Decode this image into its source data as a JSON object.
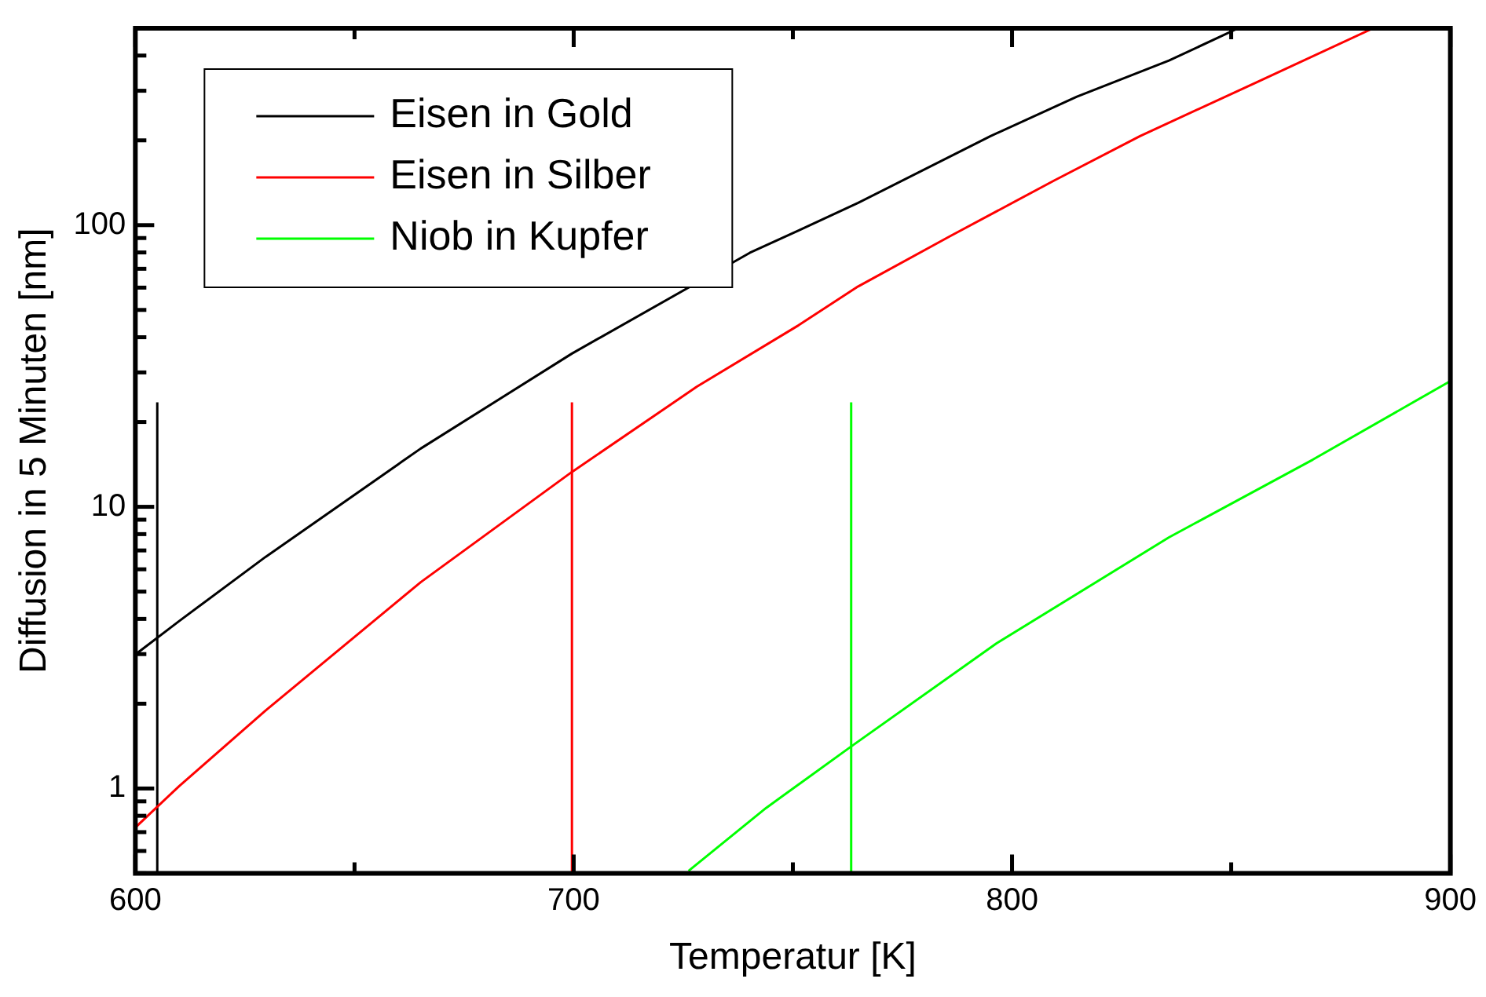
{
  "chart_data": {
    "type": "line",
    "xlabel": "Temperatur [K]",
    "ylabel": "Diffusion in 5 Minuten [nm]",
    "log": "y",
    "grid": false,
    "legend": "top left",
    "line_style": "solid",
    "marker": "none",
    "xlim": [
      600,
      900
    ],
    "xticks": [
      600,
      {
        "value": 650,
        "label": null
      },
      700,
      {
        "value": 750,
        "label": null
      },
      800,
      {
        "value": 850,
        "label": null
      },
      900
    ],
    "ylim": [
      0.5,
      500
    ],
    "yticks": [
      {
        "value": 0.5,
        "label": null
      },
      {
        "value": 0.6,
        "label": null
      },
      {
        "value": 0.7,
        "label": null
      },
      {
        "value": 0.8,
        "label": null
      },
      {
        "value": 0.9,
        "label": null
      },
      1,
      {
        "value": 2,
        "label": null
      },
      {
        "value": 3,
        "label": null
      },
      {
        "value": 4,
        "label": null
      },
      {
        "value": 5,
        "label": null
      },
      {
        "value": 6,
        "label": null
      },
      {
        "value": 7,
        "label": null
      },
      {
        "value": 8,
        "label": null
      },
      {
        "value": 9,
        "label": null
      },
      10,
      {
        "value": 20,
        "label": null
      },
      {
        "value": 30,
        "label": null
      },
      {
        "value": 40,
        "label": null
      },
      {
        "value": 50,
        "label": null
      },
      {
        "value": 60,
        "label": null
      },
      {
        "value": 70,
        "label": null
      },
      {
        "value": 80,
        "label": null
      },
      {
        "value": 90,
        "label": null
      },
      100,
      {
        "value": 200,
        "label": null
      },
      {
        "value": 300,
        "label": null
      },
      {
        "value": 400,
        "label": null
      },
      {
        "value": 500,
        "label": null
      }
    ],
    "series": [
      {
        "name": "Eisen in Gold",
        "color": "#000000",
        "x": [
          600,
          610,
          629.7,
          665.1,
          699.6,
          740.2,
          751.3,
          764.9,
          795.1,
          814.8,
          835.8,
          851.6
        ],
        "values": [
          2.99,
          3.93,
          6.64,
          16.1,
          35,
          79.8,
          95.7,
          120,
          207,
          286,
          384,
          500
        ]
      },
      {
        "name": "Eisen in Silber",
        "color": "#ff0000",
        "x": [
          600,
          610,
          629.7,
          665.1,
          699.6,
          728.1,
          751.3,
          764.9,
          785.9,
          809.6,
          829.2,
          855.5,
          882.4
        ],
        "values": [
          0.727,
          1.02,
          1.89,
          5.4,
          13.3,
          26.7,
          44.1,
          60.6,
          91.4,
          144,
          207,
          320,
          500
        ]
      },
      {
        "name": "Niob in Kupfer",
        "color": "#00ff00",
        "x": [
          726.2,
          743.9,
          763.3,
          796.4,
          835.8,
          868.6,
          899.9
        ],
        "values": [
          0.51,
          0.853,
          1.41,
          3.27,
          7.79,
          14.7,
          27.9
        ]
      },
      {
        "color": "#000000",
        "x": [
          605,
          605
        ],
        "values": [
          0.5,
          23.5
        ]
      },
      {
        "color": "#ff0000",
        "x": [
          699.6,
          699.6
        ],
        "values": [
          0.5,
          23.5
        ]
      },
      {
        "color": "#00ff00",
        "x": [
          763.3,
          763.3
        ],
        "values": [
          0.5,
          23.5
        ]
      }
    ]
  }
}
